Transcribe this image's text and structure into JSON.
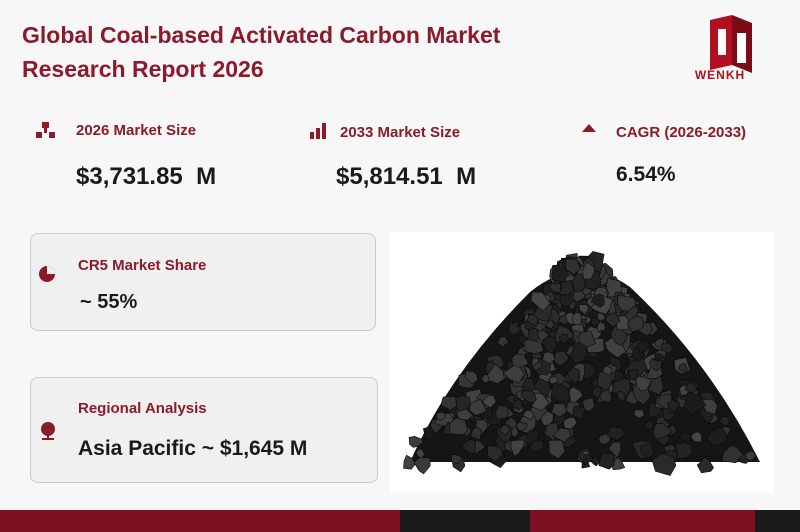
{
  "header": {
    "title": "Global Coal-based Activated Carbon Market Research Report 2026",
    "logo": "WENKH"
  },
  "stats": [
    {
      "label": "2026 Market Size",
      "value": "$3,731.85  M"
    },
    {
      "label": "2033 Market Size",
      "value": "$5,814.51  M"
    },
    {
      "label": "CAGR (2026-2033)",
      "value": "6.54%"
    }
  ],
  "cards": [
    {
      "label": "CR5 Market Share",
      "value": "~ 55%"
    },
    {
      "label": "Regional Analysis",
      "value": "Asia Pacific ~ $1,645 M"
    }
  ]
}
